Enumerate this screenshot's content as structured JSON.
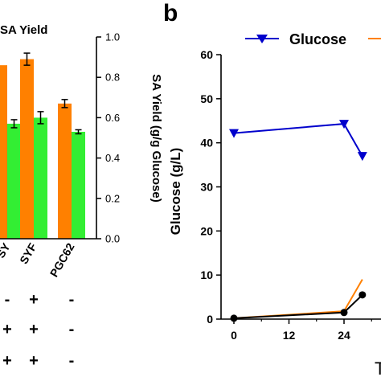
{
  "chart_data": [
    {
      "type": "bar",
      "legend_text": "SA Yield",
      "ylabel": "SA Yield (g/g Glucose)",
      "ylim": [
        0,
        1.0
      ],
      "yticks": [
        "0.0",
        "0.2",
        "0.4",
        "0.6",
        "0.8",
        "1.0"
      ],
      "categories": [
        "SY",
        "SYF",
        "PGC62"
      ],
      "colors": {
        "orange": "#ff8000",
        "green": "#33ee33"
      },
      "series": [
        {
          "values": [
            0.86,
            0.89,
            0.67
          ],
          "errors": [
            0.0,
            0.03,
            0.02
          ]
        },
        {
          "values": [
            0.57,
            0.6,
            0.53
          ],
          "errors": [
            0.02,
            0.03,
            0.01
          ]
        }
      ],
      "genotype_rows": [
        [
          "-",
          "+",
          "-"
        ],
        [
          "+",
          "+",
          "-"
        ],
        [
          "+",
          "+",
          "-"
        ]
      ]
    },
    {
      "type": "line",
      "panel_label": "b",
      "ylabel": "Glucose (g/L)",
      "xlabel": "T",
      "ylim": [
        0,
        60
      ],
      "yticks": [
        "0",
        "10",
        "20",
        "30",
        "40",
        "50",
        "60"
      ],
      "xticks": [
        "0",
        "12",
        "24"
      ],
      "legend": [
        "Glucose"
      ],
      "series": [
        {
          "name": "Glucose",
          "color": "#0000cc",
          "x": [
            0,
            24,
            28
          ],
          "y": [
            42.2,
            44.3,
            37.0
          ]
        },
        {
          "color": "#ff8000",
          "x": [
            0,
            24,
            28
          ],
          "y": [
            0.2,
            1.8,
            9.0
          ]
        },
        {
          "color": "#000000",
          "x": [
            0,
            24,
            28
          ],
          "y": [
            0.2,
            1.5,
            5.5
          ]
        }
      ]
    }
  ]
}
